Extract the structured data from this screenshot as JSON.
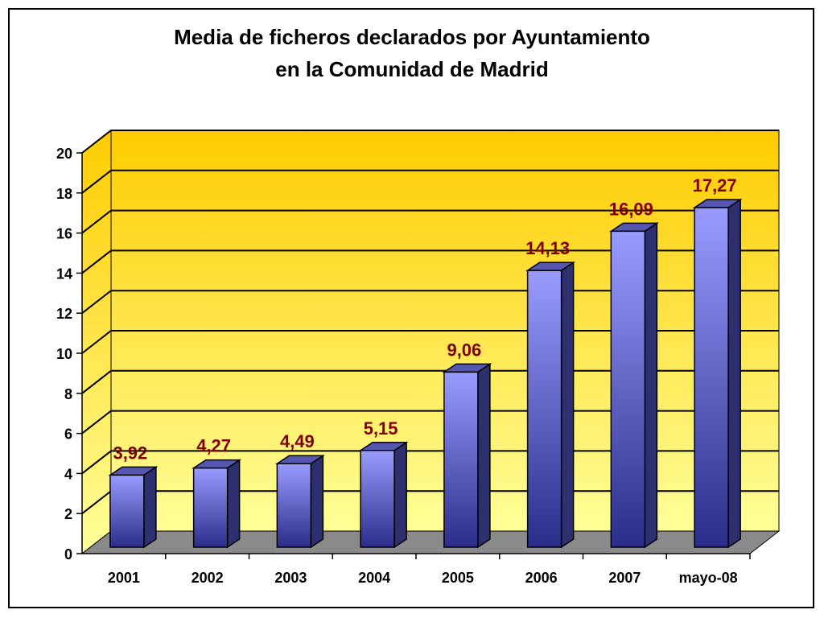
{
  "chart_data": {
    "type": "bar",
    "title": "Media de ficheros declarados por Ayuntamiento",
    "subtitle": "en la Comunidad de Madrid",
    "categories": [
      "2001",
      "2002",
      "2003",
      "2004",
      "2005",
      "2006",
      "2007",
      "mayo-08"
    ],
    "values": [
      3.92,
      4.27,
      4.49,
      5.15,
      9.06,
      14.13,
      16.09,
      17.27
    ],
    "data_labels": [
      "3,92",
      "4,27",
      "4,49",
      "5,15",
      "9,06",
      "14,13",
      "16,09",
      "17,27"
    ],
    "y_ticks": [
      "0",
      "2",
      "4",
      "6",
      "8",
      "10",
      "12",
      "14",
      "16",
      "18",
      "20"
    ],
    "ylim": [
      0,
      20
    ],
    "xlabel": "",
    "ylabel": "",
    "grid": true,
    "legend": "none",
    "three_d": true
  },
  "colors": {
    "bar_front_top": "#9a9bff",
    "bar_front_bottom": "#2a2d8a",
    "bar_side": "#2e2f6e",
    "bar_top": "#5556b0",
    "wall_top": "#ffcc00",
    "wall_bottom": "#ffff99",
    "floor": "#8a8a8a",
    "data_label": "#800000",
    "gridline": "#000000"
  }
}
